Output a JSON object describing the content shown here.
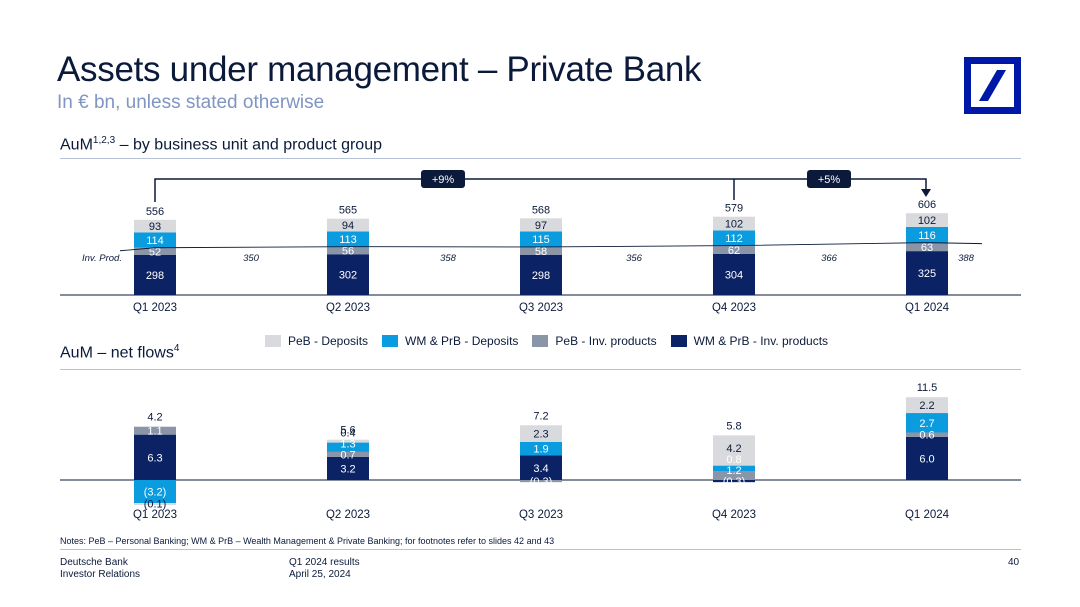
{
  "header": {
    "title": "Assets under management – Private Bank",
    "subtitle": "In € bn, unless stated otherwise"
  },
  "colors": {
    "peb_deposits": "#d9dade",
    "wm_deposits": "#0b9ce0",
    "peb_inv": "#8a95a8",
    "wm_inv": "#0b2265",
    "navy": "#0b1a3a",
    "rule": "#b7c1d8"
  },
  "logo": {
    "name": "deutsche-bank-logo"
  },
  "section1": {
    "title": "AuM",
    "sup": "1,2,3",
    "suffix": " – by business unit and product group"
  },
  "section2": {
    "title": "AuM – net flows",
    "sup": "4"
  },
  "legend": [
    {
      "label": "PeB - Deposits",
      "color": "#d9dade"
    },
    {
      "label": "WM & PrB - Deposits",
      "color": "#0b9ce0"
    },
    {
      "label": "PeB - Inv. products",
      "color": "#8a95a8"
    },
    {
      "label": "WM & PrB - Inv. products",
      "color": "#0b2265"
    }
  ],
  "chart_data": [
    {
      "type": "bar",
      "stacked": true,
      "categories": [
        "Q1 2023",
        "Q2 2023",
        "Q3 2023",
        "Q4 2023",
        "Q1 2024"
      ],
      "series": [
        {
          "name": "WM & PrB - Inv. products",
          "values": [
            298,
            302,
            298,
            304,
            325
          ]
        },
        {
          "name": "PeB - Inv. products",
          "values": [
            52,
            56,
            58,
            62,
            63
          ]
        },
        {
          "name": "WM & PrB - Deposits",
          "values": [
            114,
            113,
            115,
            112,
            116
          ]
        },
        {
          "name": "PeB - Deposits",
          "values": [
            93,
            94,
            97,
            102,
            102
          ]
        }
      ],
      "totals": [
        "556",
        "565",
        "568",
        "579",
        "606"
      ],
      "inv_prod_label": "Inv. Prod.",
      "inv_prod_values": [
        "350",
        "358",
        "356",
        "366",
        "388"
      ],
      "growth_annotations": [
        "+9%",
        "+5%"
      ]
    },
    {
      "type": "bar",
      "stacked": true,
      "categories": [
        "Q1 2023",
        "Q2 2023",
        "Q3 2023",
        "Q4 2023",
        "Q1 2024"
      ],
      "series": [
        {
          "name": "WM & PrB - Inv. products",
          "values": [
            6.3,
            3.2,
            3.4,
            -0.3,
            6.0
          ],
          "labels": [
            "6.3",
            "3.2",
            "3.4",
            "(0.3)",
            "6.0"
          ]
        },
        {
          "name": "PeB - Inv. products",
          "values": [
            1.1,
            0.7,
            -0.3,
            1.2,
            0.6
          ],
          "labels": [
            "1.1",
            "0.7",
            "(0.3)",
            "1.2",
            "0.6"
          ]
        },
        {
          "name": "WM & PrB - Deposits",
          "values": [
            -3.2,
            1.3,
            1.9,
            0.8,
            2.7
          ],
          "labels": [
            "(3.2)",
            "1.3",
            "1.9",
            "0.8",
            "2.7"
          ]
        },
        {
          "name": "PeB - Deposits",
          "values": [
            -0.1,
            0.4,
            2.3,
            4.2,
            2.2
          ],
          "labels": [
            "(0.1)",
            "0.4",
            "2.3",
            "4.2",
            "2.2"
          ]
        }
      ],
      "totals": [
        "4.2",
        "5.6",
        "7.2",
        "5.8",
        "11.5"
      ]
    }
  ],
  "notes": "Notes: PeB – Personal Banking; WM & PrB – Wealth Management & Private Banking; for footnotes refer to slides 42 and 43",
  "footer": {
    "company": "Deutsche Bank",
    "department": "Investor Relations",
    "report": "Q1 2024 results",
    "date": "April 25, 2024",
    "page": "40"
  }
}
